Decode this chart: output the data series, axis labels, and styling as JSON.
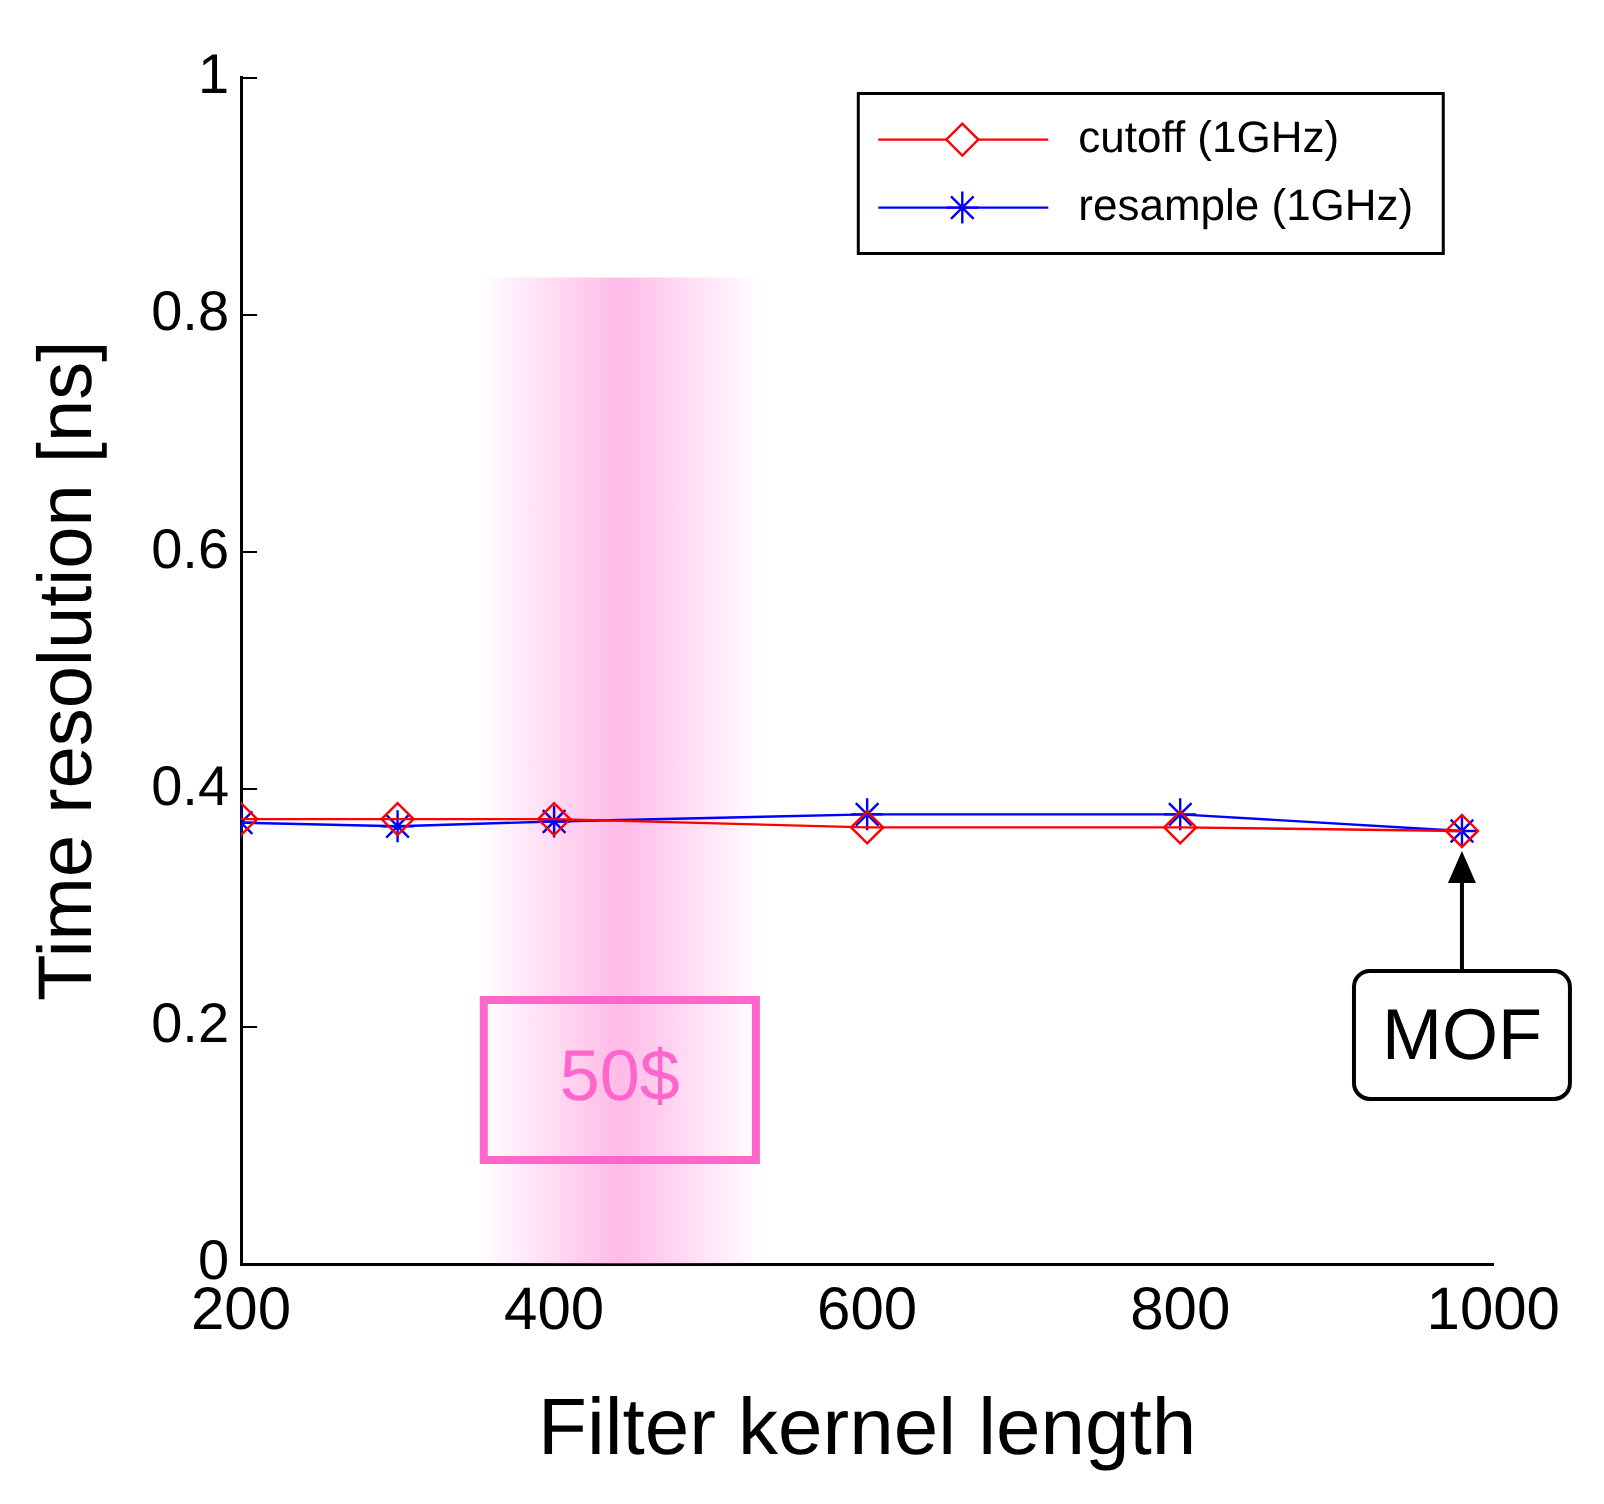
{
  "chart_data": {
    "type": "line",
    "xlabel": "Filter kernel length",
    "ylabel": "Time resolution [ns]",
    "xlim": [
      200,
      1000
    ],
    "xticks": [
      200,
      400,
      600,
      800,
      1000
    ],
    "ylim": [
      0,
      1
    ],
    "yticks": [
      0,
      0.2,
      0.4,
      0.6,
      0.8,
      1
    ],
    "x": [
      200,
      300,
      400,
      600,
      800,
      980
    ],
    "series": [
      {
        "name": "cutoff (1GHz)",
        "color": "#ff0000",
        "marker": "diamond",
        "values": [
          0.375,
          0.375,
          0.375,
          0.368,
          0.368,
          0.365
        ]
      },
      {
        "name": "resample (1GHz)",
        "color": "#0000ff",
        "marker": "cross",
        "values": [
          0.372,
          0.369,
          0.373,
          0.379,
          0.379,
          0.365
        ]
      }
    ],
    "bands": [
      {
        "axis": "x",
        "from": 352,
        "to": 532,
        "label": "50$",
        "color": "#ff66cc"
      }
    ],
    "annotations": [
      {
        "text": "MOF",
        "x": 980,
        "y": 0.365
      }
    ],
    "grid": false,
    "legend": "top right"
  }
}
